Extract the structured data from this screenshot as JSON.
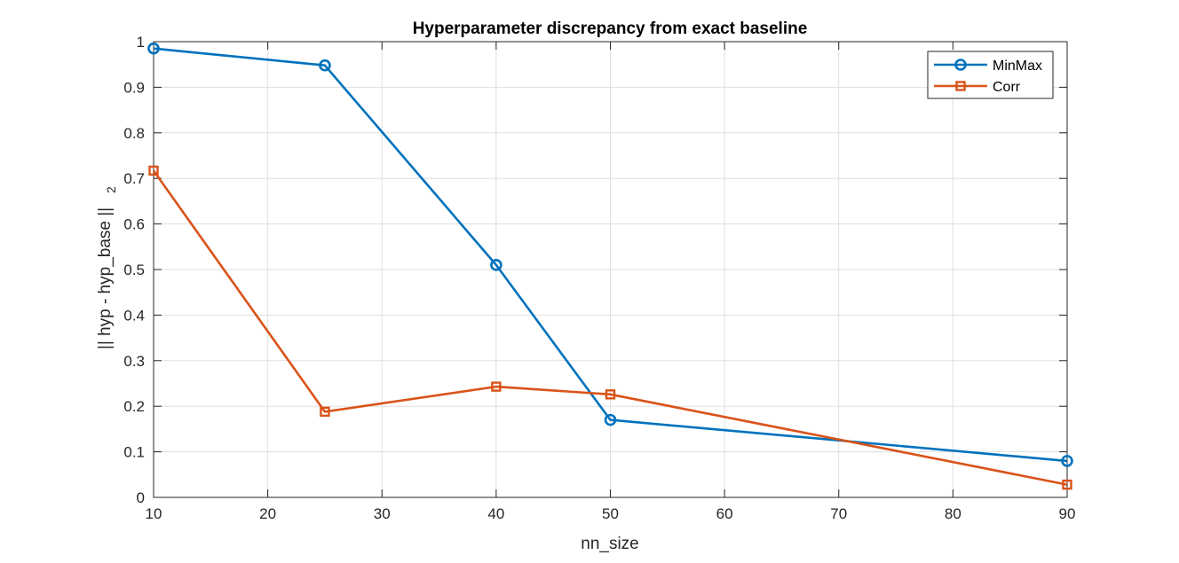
{
  "chart_data": {
    "type": "line",
    "title": "Hyperparameter discrepancy from exact baseline",
    "xlabel": "nn_size",
    "ylabel": "|| hyp - hyp_base ||",
    "ylabel_subscript": "2",
    "xlim": [
      10,
      90
    ],
    "ylim": [
      0,
      1
    ],
    "xticks": [
      10,
      20,
      30,
      40,
      50,
      60,
      70,
      80,
      90
    ],
    "yticks": [
      0,
      0.1,
      0.2,
      0.3,
      0.4,
      0.5,
      0.6,
      0.7,
      0.8,
      0.9,
      1
    ],
    "grid": true,
    "legend_position": "top-right",
    "x": [
      10,
      25,
      40,
      50,
      90
    ],
    "series": [
      {
        "name": "MinMax",
        "marker": "circle",
        "color": "#0072BD",
        "values": [
          0.985,
          0.948,
          0.51,
          0.17,
          0.08
        ]
      },
      {
        "name": "Corr",
        "marker": "square",
        "color": "#D95319",
        "values": [
          0.717,
          0.188,
          0.243,
          0.226,
          0.028
        ]
      }
    ]
  }
}
